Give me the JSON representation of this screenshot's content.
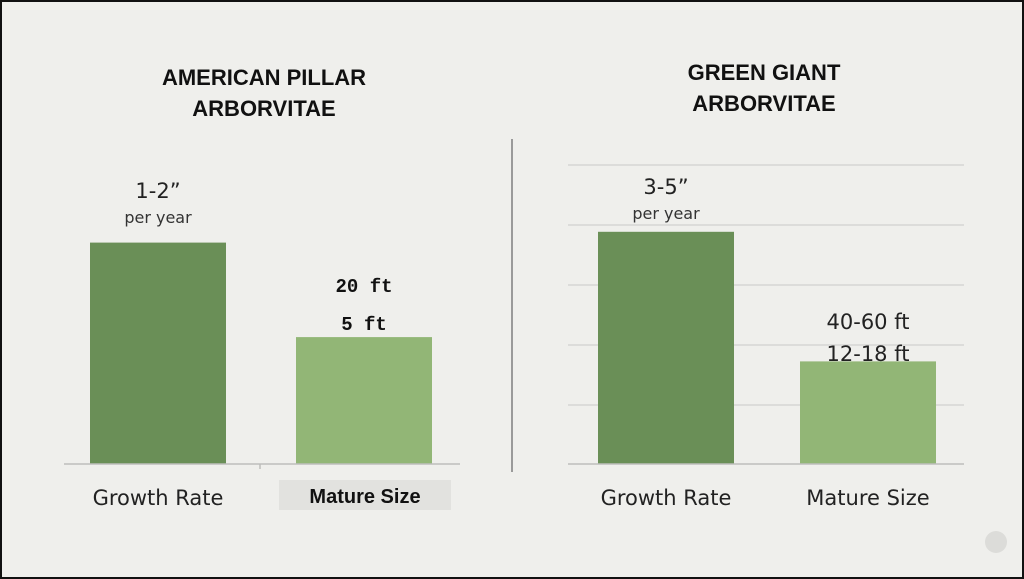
{
  "chart_data": [
    {
      "type": "bar",
      "title": "AMERICAN PILLAR ARBORVITAE",
      "title_lines": [
        "AMERICAN PILLAR",
        "ARBORVITAE"
      ],
      "categories": [
        "Growth Rate",
        "Mature Size"
      ],
      "bar_levels": [
        0.82,
        0.47
      ],
      "data_labels": [
        {
          "main": "1-2”",
          "sub": "per year"
        },
        {
          "main": "20 ft",
          "sub": "5 ft"
        }
      ],
      "colors": [
        "#6a8f57",
        "#92b676"
      ],
      "grid": false
    },
    {
      "type": "bar",
      "title": "GREEN GIANT ARBORVITAE",
      "title_lines": [
        "GREEN GIANT",
        "ARBORVITAE"
      ],
      "categories": [
        "Growth Rate",
        "Mature Size"
      ],
      "bar_levels": [
        0.86,
        0.38
      ],
      "data_labels": [
        {
          "main": "3-5”",
          "sub": "per year"
        },
        {
          "main": "40-60 ft",
          "sub": "12-18 ft"
        }
      ],
      "colors": [
        "#6a8f57",
        "#92b676"
      ],
      "grid": true
    }
  ],
  "colors": {
    "background": "#efefec",
    "divider": "#9a9a9a",
    "gridline": "#d6d6d3"
  }
}
